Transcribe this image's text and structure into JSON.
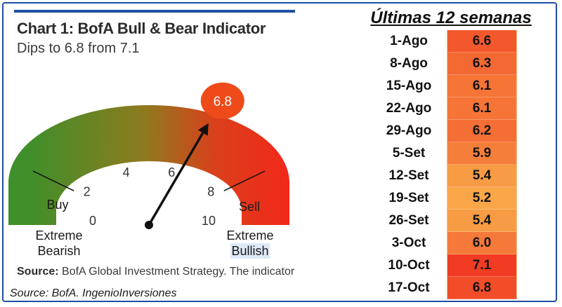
{
  "left_chart": {
    "title": "Chart 1: BofA Bull & Bear Indicator",
    "subtitle": "Dips to 6.8 from 7.1",
    "source_label": "Source:",
    "source_text": "BofA Global Investment Strategy. The indicator"
  },
  "footer_source": "Source: BofA. IngenioInversiones",
  "chart_data": [
    {
      "type": "gauge",
      "title": "Chart 1: BofA Bull & Bear Indicator",
      "subtitle": "Dips to 6.8 from 7.1",
      "range": [
        0,
        10
      ],
      "ticks": [
        0,
        2,
        4,
        6,
        8,
        10
      ],
      "value": 6.8,
      "zones": [
        {
          "label": "Buy",
          "from": 0,
          "to": 2
        },
        {
          "label": "Sell",
          "from": 8,
          "to": 10
        }
      ],
      "end_labels": {
        "left": [
          "Extreme",
          "Bearish"
        ],
        "right": [
          "Extreme",
          "Bullish"
        ]
      },
      "colors": {
        "bearish": "#3f8f2a",
        "bullish": "#e8201a",
        "bubble": "#ef4a1a"
      }
    },
    {
      "type": "table",
      "title": "Últimas 12 semanas",
      "rows": [
        {
          "date": "1-Ago",
          "value": "6.6"
        },
        {
          "date": "8-Ago",
          "value": "6.3"
        },
        {
          "date": "15-Ago",
          "value": "6.1"
        },
        {
          "date": "22-Ago",
          "value": "6.1"
        },
        {
          "date": "29-Ago",
          "value": "6.2"
        },
        {
          "date": "5-Set",
          "value": "5.9"
        },
        {
          "date": "12-Set",
          "value": "5.4"
        },
        {
          "date": "19-Set",
          "value": "5.2"
        },
        {
          "date": "26-Set",
          "value": "5.4"
        },
        {
          "date": "3-Oct",
          "value": "6.0"
        },
        {
          "date": "10-Oct",
          "value": "7.1"
        },
        {
          "date": "17-Oct",
          "value": "6.8"
        }
      ]
    }
  ]
}
